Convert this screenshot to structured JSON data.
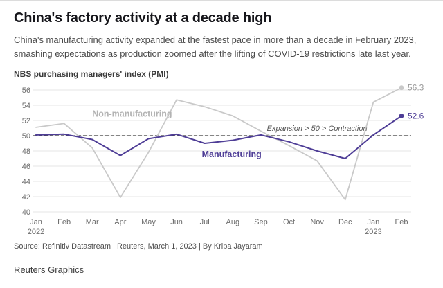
{
  "header": {
    "title": "China's factory activity at a decade high",
    "subtitle": "China's manufacturing activity expanded at the fastest pace in more than a decade in February 2023, smashing expectations as production zoomed after the lifting of COVID-19 restrictions late last year."
  },
  "chart_data": {
    "type": "line",
    "title": "NBS purchasing managers' index (PMI)",
    "grid": true,
    "ylim": [
      40,
      56
    ],
    "yticks": [
      40,
      42,
      44,
      46,
      48,
      50,
      52,
      54,
      56
    ],
    "x_labels": [
      {
        "month": "Jan",
        "year": "2022"
      },
      {
        "month": "Feb"
      },
      {
        "month": "Mar"
      },
      {
        "month": "Apr"
      },
      {
        "month": "May"
      },
      {
        "month": "Jun"
      },
      {
        "month": "Jul"
      },
      {
        "month": "Aug"
      },
      {
        "month": "Sep"
      },
      {
        "month": "Oct"
      },
      {
        "month": "Nov"
      },
      {
        "month": "Dec"
      },
      {
        "month": "Jan",
        "year": "2023"
      },
      {
        "month": "Feb"
      }
    ],
    "series": [
      {
        "name": "Non-manufacturing",
        "color": "#c9c9c9",
        "label_color": "#9a9a9a",
        "width": 1.8,
        "values": [
          51.1,
          51.6,
          48.4,
          41.9,
          47.8,
          54.7,
          53.8,
          52.6,
          50.6,
          48.7,
          46.7,
          41.6,
          54.4,
          56.3
        ],
        "end_label": "56.3"
      },
      {
        "name": "Manufacturing",
        "color": "#4e3d96",
        "label_color": "#4e3d96",
        "width": 2,
        "values": [
          50.1,
          50.2,
          49.5,
          47.4,
          49.6,
          50.2,
          49.0,
          49.4,
          50.1,
          49.2,
          48.0,
          47.0,
          50.1,
          52.6
        ],
        "end_label": "52.6"
      }
    ],
    "annotations": [
      {
        "text": "Non-manufacturing",
        "color": "#b3b3b3",
        "x_index": 2.0,
        "y_value": 52.5
      },
      {
        "text": "Manufacturing",
        "color": "#4e3d96",
        "x_index": 5.9,
        "y_value": 47.2
      }
    ],
    "reference_line": {
      "value": 50,
      "label": "Expansion > 50 > Contraction"
    }
  },
  "source": "Source: Refinitiv Datastream | Reuters, March 1, 2023 | By Kripa Jayaram",
  "footer": {
    "brand": "Reuters Graphics"
  }
}
